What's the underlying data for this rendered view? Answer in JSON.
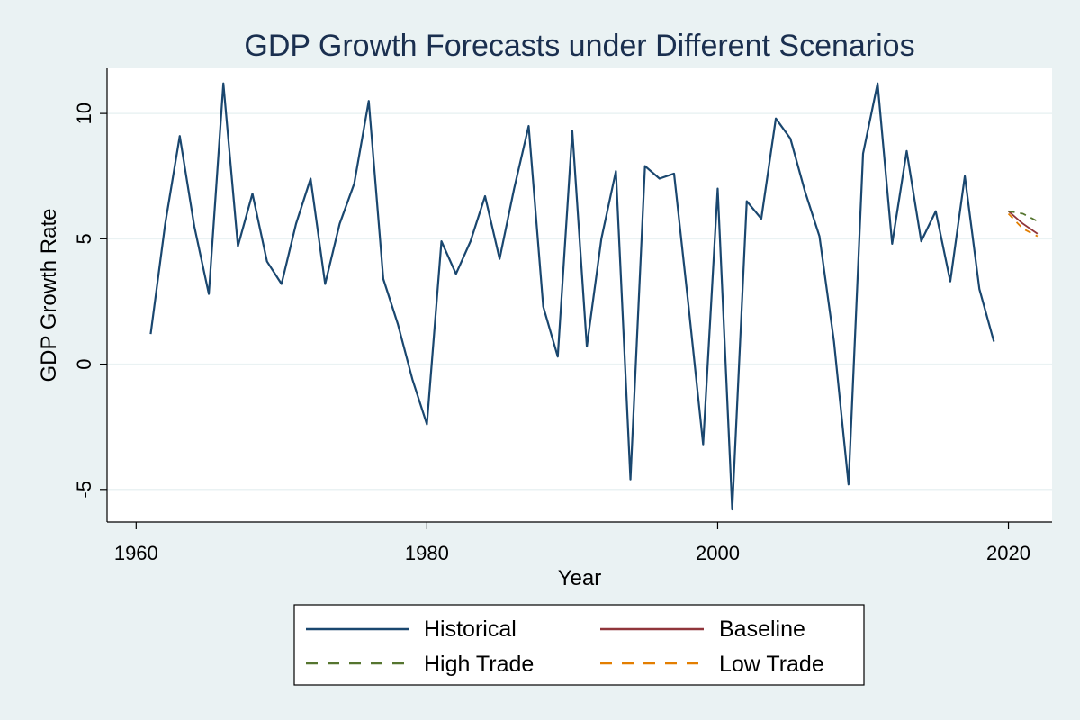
{
  "chart_data": {
    "type": "line",
    "title": "GDP Growth Forecasts under Different Scenarios",
    "xlabel": "Year",
    "ylabel": "GDP Growth Rate",
    "xlim": [
      1958,
      2023
    ],
    "ylim": [
      -6.3,
      11.8
    ],
    "xticks": [
      1960,
      1980,
      2000,
      2020
    ],
    "yticks": [
      -5,
      0,
      5,
      10
    ],
    "grid": true,
    "legend_position": "bottom",
    "series": [
      {
        "name": "Historical",
        "color": "#1a476f",
        "dash": "solid",
        "x": [
          1961,
          1962,
          1963,
          1964,
          1965,
          1966,
          1967,
          1968,
          1969,
          1970,
          1971,
          1972,
          1973,
          1974,
          1975,
          1976,
          1977,
          1978,
          1979,
          1980,
          1981,
          1982,
          1983,
          1984,
          1985,
          1986,
          1987,
          1988,
          1989,
          1990,
          1991,
          1992,
          1993,
          1994,
          1995,
          1996,
          1997,
          1998,
          1999,
          2000,
          2001,
          2002,
          2003,
          2004,
          2005,
          2006,
          2007,
          2008,
          2009,
          2010,
          2011,
          2012,
          2013,
          2014,
          2015,
          2016,
          2017,
          2018,
          2019
        ],
        "y": [
          1.2,
          5.6,
          9.1,
          5.5,
          2.8,
          11.2,
          4.7,
          6.8,
          4.1,
          3.2,
          5.6,
          7.4,
          3.2,
          5.6,
          7.2,
          10.5,
          3.4,
          1.6,
          -0.6,
          -2.4,
          4.9,
          3.6,
          4.9,
          6.7,
          4.2,
          7.0,
          9.5,
          2.3,
          0.3,
          9.3,
          0.7,
          5.0,
          7.7,
          -4.6,
          7.9,
          7.4,
          7.6,
          2.3,
          -3.2,
          7.0,
          -5.8,
          6.5,
          5.8,
          9.8,
          9.0,
          6.9,
          5.1,
          0.9,
          -4.8,
          8.4,
          11.2,
          4.8,
          8.5,
          4.9,
          6.1,
          3.3,
          7.5,
          3.0,
          0.9
        ]
      },
      {
        "name": "Baseline",
        "color": "#90353b",
        "dash": "solid",
        "x": [
          2020,
          2021,
          2022
        ],
        "y": [
          6.1,
          5.6,
          5.2
        ]
      },
      {
        "name": "High Trade",
        "color": "#55752f",
        "dash": "dashed",
        "x": [
          2020,
          2021,
          2022
        ],
        "y": [
          6.1,
          6.0,
          5.7
        ]
      },
      {
        "name": "Low Trade",
        "color": "#e37e00",
        "dash": "dashed",
        "x": [
          2020,
          2021,
          2022
        ],
        "y": [
          6.0,
          5.4,
          5.1
        ]
      }
    ]
  }
}
